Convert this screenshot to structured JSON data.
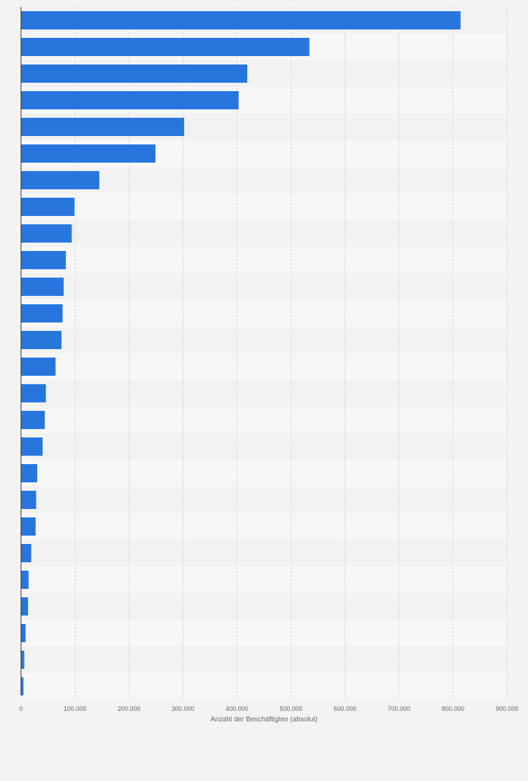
{
  "chart_data": {
    "type": "bar",
    "orientation": "horizontal",
    "xlabel": "Anzahl der Beschäftigten (absolut)",
    "xlim": [
      0,
      900000
    ],
    "ticks": [
      0,
      100000,
      200000,
      300000,
      400000,
      500000,
      600000,
      700000,
      800000,
      900000
    ],
    "tick_labels": [
      "0",
      "100.000",
      "200.000",
      "300.000",
      "400.000",
      "500.000",
      "600.000",
      "700.000",
      "800.000",
      "900.000"
    ],
    "values": [
      814000,
      534000,
      419000,
      403000,
      302000,
      249000,
      145000,
      99000,
      94000,
      83000,
      79000,
      77000,
      75000,
      64000,
      46000,
      44000,
      40000,
      30000,
      28000,
      27000,
      19000,
      14000,
      13000,
      8500,
      6000,
      4500
    ],
    "grid": true,
    "colors": {
      "bar": "#2876dd",
      "background": "#f3f3f3",
      "band_light": "#f7f7f7",
      "band_dark": "#f2f2f2",
      "grid": "#d6d6d6",
      "text": "#666666"
    }
  }
}
